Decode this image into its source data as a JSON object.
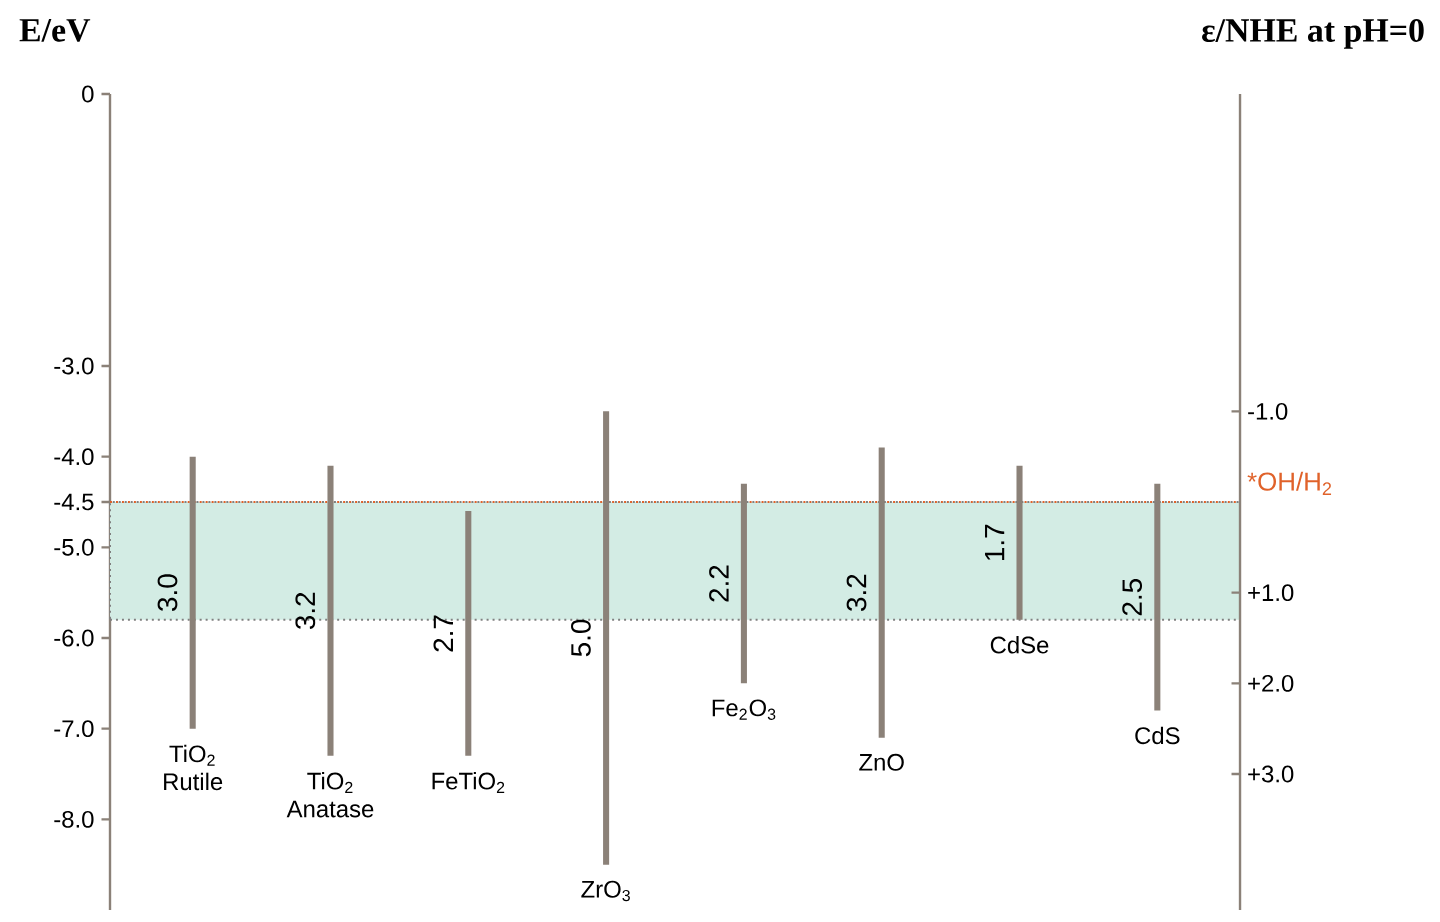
{
  "chart_data": {
    "type": "bar",
    "ylabel": "E/eV",
    "y2label": "ε/NHE at pH=0",
    "categories": [
      "TiO$_{2}$ Rutile",
      "TiO$_{2}$ Anatase",
      "FeTiO$_{2}$",
      "ZrO$_{3}$",
      "Fe$_{2}$O$_{3}$",
      "ZnO",
      "CdSe",
      "CdS"
    ],
    "base": [
      -7.0,
      -7.3,
      -7.3,
      -8.5,
      -6.5,
      -7.1,
      -5.8,
      -6.8
    ],
    "values": [
      3.0,
      3.2,
      2.7,
      5.0,
      2.2,
      3.2,
      1.7,
      2.5
    ],
    "value_labels": [
      "3.0",
      "3.2",
      "2.7",
      "5.0",
      "2.2",
      "3.2",
      "1.7",
      "2.5"
    ],
    "color": "#8b8178",
    "ylim": [
      -9,
      0
    ],
    "yticks": [
      0,
      {
        "value": -3,
        "label": "-3.0"
      },
      {
        "value": -4,
        "label": "-4.0"
      },
      -4.5,
      {
        "value": -5,
        "label": "-5.0"
      },
      {
        "value": -6,
        "label": "-6.0"
      },
      {
        "value": -7,
        "label": "-7.0"
      },
      {
        "value": -8,
        "label": "-8.0"
      }
    ],
    "y2lim": [
      4.5,
      -4.5
    ],
    "y2ticks": [
      {
        "value": -1,
        "label": "-1.0"
      },
      {
        "value": 1,
        "label": "+1.0"
      },
      {
        "value": 2,
        "label": "+2.0"
      },
      {
        "value": 3,
        "label": "+3.0"
      }
    ],
    "ref_lines": [
      {
        "axis": "y",
        "value": -4.5,
        "label": "*OH/H$_{2}$",
        "color": "#e0622a",
        "line_style": "dotted"
      }
    ],
    "bands": [
      {
        "axis": "y",
        "from": -5.8,
        "to": -4.5,
        "color": "#d3ece4"
      }
    ]
  }
}
